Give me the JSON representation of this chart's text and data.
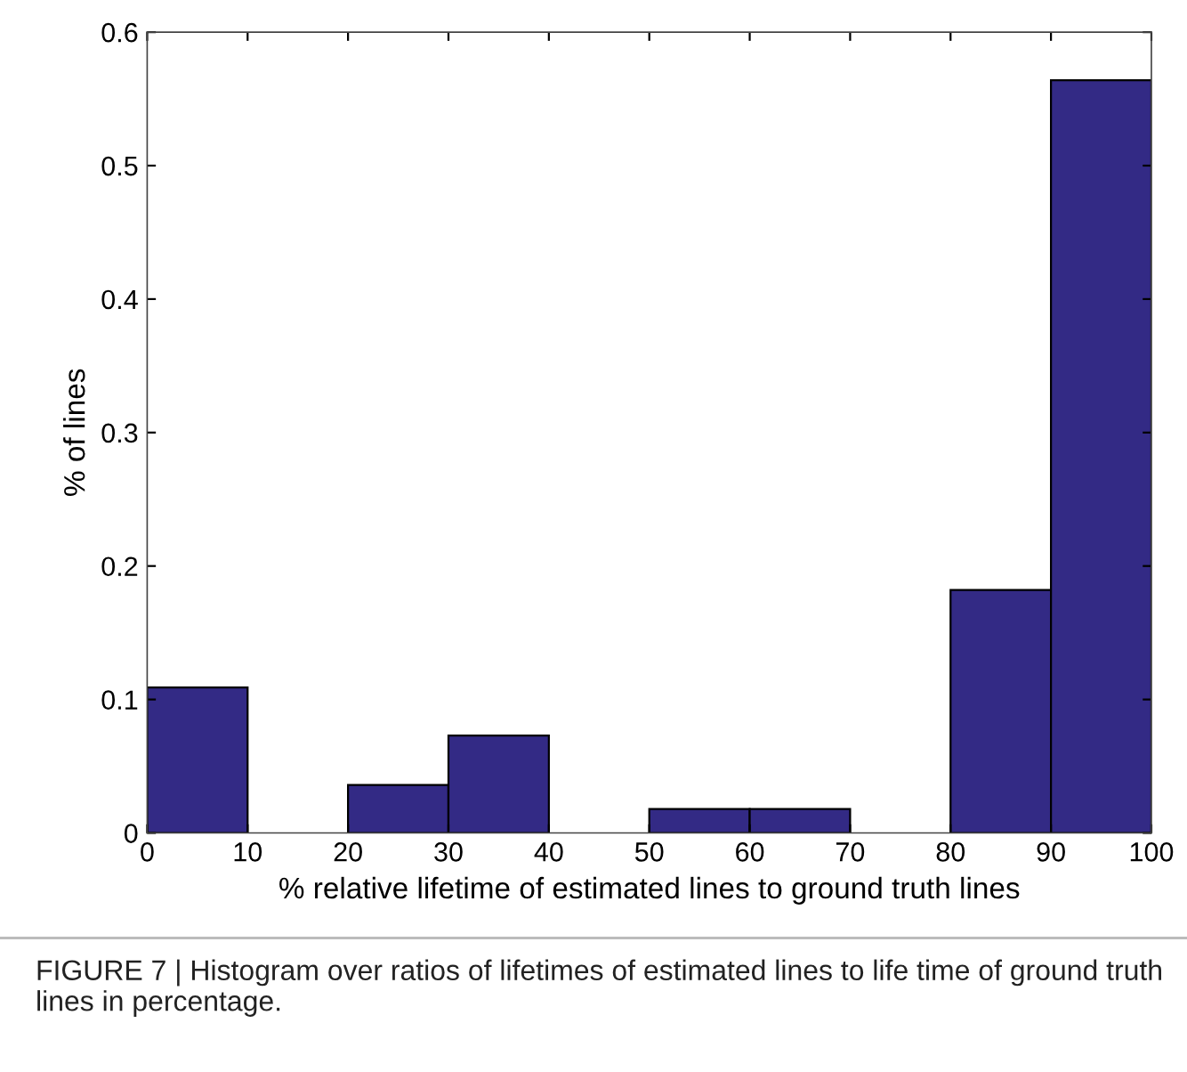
{
  "chart_data": {
    "type": "histogram",
    "xlabel": "% relative lifetime of estimated lines to ground truth lines",
    "ylabel": "% of lines",
    "bins": [
      0,
      10,
      20,
      30,
      40,
      50,
      60,
      70,
      80,
      90,
      100
    ],
    "values": [
      0.109,
      0,
      0.036,
      0.073,
      0,
      0.018,
      0.018,
      0,
      0.182,
      0.564
    ],
    "color": "#332a85",
    "xlim": [
      0,
      100
    ],
    "xticks": [
      0,
      10,
      20,
      30,
      40,
      50,
      60,
      70,
      80,
      90,
      100
    ],
    "ylim": [
      0,
      0.6
    ],
    "yticks": [
      0,
      0.1,
      0.2,
      0.3,
      0.4,
      0.5,
      0.6
    ],
    "grid": false,
    "annotations": [
      "FIGURE 7 | Histogram over ratios of lifetimes of estimated lines to life time of ground truth lines in percentage."
    ]
  }
}
